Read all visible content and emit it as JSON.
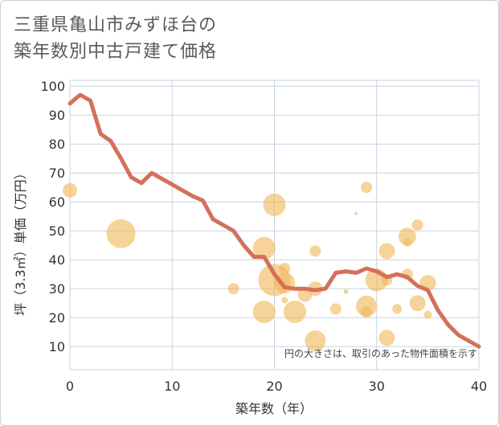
{
  "title": {
    "line1": "三重県亀山市みずほ台の",
    "line2": "築年数別中古戸建て価格"
  },
  "colors": {
    "line": "#d4705a",
    "bubble": "#f0b85a",
    "grid": "#c8d3e0",
    "plot_bg": "#ffffff"
  },
  "chart_data": {
    "type": "line+bubble",
    "title": "三重県亀山市みずほ台の築年数別中古戸建て価格",
    "xlabel": "築年数（年）",
    "ylabel": "坪（3.3㎡）単価（万円）",
    "xlim": [
      0,
      40
    ],
    "ylim": [
      2,
      102
    ],
    "xticks": [
      0,
      10,
      20,
      30,
      40
    ],
    "yticks": [
      10,
      20,
      30,
      40,
      50,
      60,
      70,
      80,
      90,
      100
    ],
    "grid": true,
    "note": "円の大きさは、取引のあった物件面積を示す",
    "series": [
      {
        "name": "average",
        "kind": "line",
        "x": [
          0,
          1,
          2,
          3,
          4,
          5,
          6,
          7,
          8,
          9,
          10,
          11,
          12,
          13,
          14,
          15,
          16,
          17,
          18,
          19,
          20,
          21,
          22,
          23,
          24,
          25,
          26,
          27,
          28,
          29,
          30,
          31,
          32,
          33,
          34,
          35,
          36,
          37,
          38,
          39,
          40
        ],
        "values": [
          94,
          97,
          95,
          83.5,
          81,
          75,
          68.5,
          66.5,
          70,
          68,
          66,
          64,
          62,
          60.5,
          54,
          52,
          50,
          45,
          41,
          41,
          35,
          30.5,
          30,
          30,
          29.5,
          30,
          35.5,
          36,
          35.5,
          37,
          36,
          34,
          35,
          34,
          31,
          29.5,
          22.5,
          17.5,
          14,
          12,
          10
        ]
      },
      {
        "name": "transactions",
        "kind": "bubble",
        "points": [
          {
            "x": 0,
            "y": 64,
            "size": 9
          },
          {
            "x": 5,
            "y": 49,
            "size": 18
          },
          {
            "x": 16,
            "y": 30,
            "size": 7
          },
          {
            "x": 19,
            "y": 44,
            "size": 14
          },
          {
            "x": 19,
            "y": 22,
            "size": 14
          },
          {
            "x": 20,
            "y": 59,
            "size": 14
          },
          {
            "x": 20,
            "y": 33,
            "size": 20
          },
          {
            "x": 21,
            "y": 37,
            "size": 7
          },
          {
            "x": 21,
            "y": 32,
            "size": 13
          },
          {
            "x": 21,
            "y": 26,
            "size": 4
          },
          {
            "x": 22,
            "y": 22,
            "size": 14
          },
          {
            "x": 23,
            "y": 28,
            "size": 9
          },
          {
            "x": 24,
            "y": 43,
            "size": 7
          },
          {
            "x": 24,
            "y": 30,
            "size": 9
          },
          {
            "x": 24,
            "y": 12,
            "size": 13
          },
          {
            "x": 26,
            "y": 23,
            "size": 7
          },
          {
            "x": 27,
            "y": 29,
            "size": 3
          },
          {
            "x": 28,
            "y": 56,
            "size": 2
          },
          {
            "x": 29,
            "y": 65,
            "size": 7
          },
          {
            "x": 29,
            "y": 24,
            "size": 13
          },
          {
            "x": 29,
            "y": 22,
            "size": 7
          },
          {
            "x": 30,
            "y": 33,
            "size": 14
          },
          {
            "x": 31,
            "y": 43,
            "size": 10
          },
          {
            "x": 31,
            "y": 33,
            "size": 7
          },
          {
            "x": 31,
            "y": 13,
            "size": 10
          },
          {
            "x": 32,
            "y": 23,
            "size": 6
          },
          {
            "x": 33,
            "y": 48,
            "size": 11
          },
          {
            "x": 33,
            "y": 46,
            "size": 5
          },
          {
            "x": 33,
            "y": 35,
            "size": 7
          },
          {
            "x": 34,
            "y": 52,
            "size": 7
          },
          {
            "x": 34,
            "y": 25,
            "size": 10
          },
          {
            "x": 35,
            "y": 32,
            "size": 10
          },
          {
            "x": 35,
            "y": 21,
            "size": 5
          }
        ]
      }
    ]
  }
}
